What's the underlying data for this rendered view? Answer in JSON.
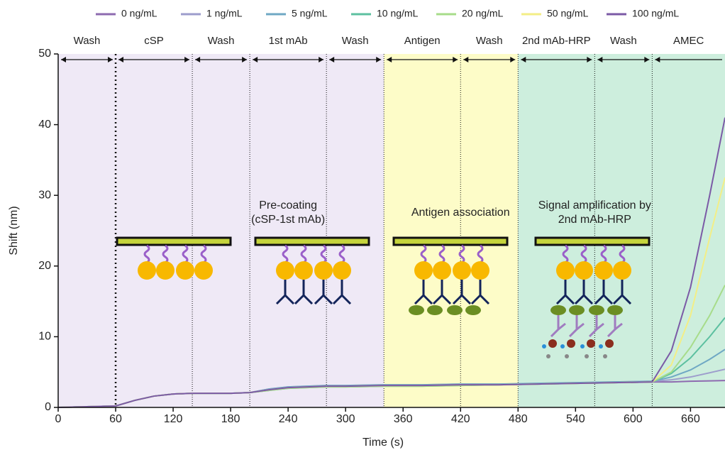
{
  "chart_data": {
    "type": "line",
    "x_label": "Time (s)",
    "y_label": "Shift (nm)",
    "x": [
      0,
      30,
      60,
      80,
      100,
      120,
      140,
      160,
      180,
      200,
      220,
      240,
      260,
      280,
      300,
      340,
      380,
      420,
      460,
      500,
      540,
      580,
      620,
      640,
      660,
      680,
      696
    ],
    "series": [
      {
        "name": "0 ng/mL",
        "color": "#8e6bb0",
        "values": [
          0,
          0.1,
          0.2,
          1.0,
          1.6,
          1.9,
          2.0,
          2.0,
          2.0,
          2.1,
          2.5,
          2.8,
          2.9,
          3.0,
          3.0,
          3.1,
          3.1,
          3.2,
          3.2,
          3.3,
          3.4,
          3.5,
          3.6,
          3.6,
          3.7,
          3.75,
          3.8
        ]
      },
      {
        "name": "1 ng/mL",
        "color": "#9d9dcc",
        "values": [
          0,
          0.1,
          0.2,
          1.0,
          1.6,
          1.9,
          2.0,
          2.0,
          2.0,
          2.1,
          2.6,
          2.9,
          3.0,
          3.1,
          3.1,
          3.2,
          3.2,
          3.3,
          3.3,
          3.4,
          3.5,
          3.6,
          3.7,
          3.9,
          4.3,
          4.9,
          5.4
        ]
      },
      {
        "name": "5 ng/mL",
        "color": "#6fa8c4",
        "values": [
          0,
          0.1,
          0.2,
          1.0,
          1.6,
          1.9,
          2.0,
          2.0,
          2.0,
          2.1,
          2.6,
          2.9,
          3.0,
          3.1,
          3.1,
          3.2,
          3.2,
          3.3,
          3.3,
          3.4,
          3.5,
          3.6,
          3.7,
          4.3,
          5.3,
          6.8,
          8.2
        ]
      },
      {
        "name": "10 ng/mL",
        "color": "#5cc0a0",
        "values": [
          0,
          0.1,
          0.2,
          1.0,
          1.6,
          1.9,
          2.0,
          2.0,
          2.0,
          2.1,
          2.4,
          2.7,
          2.8,
          2.9,
          2.9,
          3.0,
          3.0,
          3.1,
          3.2,
          3.3,
          3.4,
          3.5,
          3.6,
          4.8,
          7.0,
          10.0,
          12.7
        ]
      },
      {
        "name": "20 ng/mL",
        "color": "#a7dc8a",
        "values": [
          0,
          0.1,
          0.2,
          1.0,
          1.6,
          1.9,
          2.0,
          2.0,
          2.0,
          2.1,
          2.4,
          2.7,
          2.8,
          2.9,
          2.9,
          3.0,
          3.0,
          3.1,
          3.2,
          3.3,
          3.4,
          3.5,
          3.6,
          5.0,
          8.5,
          13.0,
          17.3
        ]
      },
      {
        "name": "50 ng/mL",
        "color": "#f3ee86",
        "values": [
          0,
          0.1,
          0.2,
          1.0,
          1.6,
          1.9,
          2.0,
          2.0,
          2.0,
          2.1,
          2.5,
          2.8,
          2.9,
          3.0,
          3.0,
          3.1,
          3.1,
          3.2,
          3.2,
          3.3,
          3.4,
          3.5,
          3.6,
          6.0,
          13.0,
          24.0,
          32.5
        ]
      },
      {
        "name": "100 ng/mL",
        "color": "#7b5aa6",
        "values": [
          0,
          0.1,
          0.2,
          1.0,
          1.6,
          1.9,
          2.0,
          2.0,
          2.0,
          2.1,
          2.5,
          2.8,
          2.9,
          3.0,
          3.0,
          3.1,
          3.1,
          3.2,
          3.2,
          3.3,
          3.4,
          3.5,
          3.6,
          8.0,
          17.0,
          30.0,
          41.0
        ]
      }
    ],
    "xlim": [
      0,
      696
    ],
    "xticks": [
      0,
      60,
      120,
      180,
      240,
      300,
      360,
      420,
      480,
      540,
      600,
      660
    ],
    "ylim": [
      0,
      50
    ],
    "yticks": [
      0,
      10,
      20,
      30,
      40,
      50
    ],
    "regions": [
      {
        "start": 0,
        "end": 340,
        "color": "#efe9f6"
      },
      {
        "start": 340,
        "end": 480,
        "color": "#fdfcc8"
      },
      {
        "start": 480,
        "end": 696,
        "color": "#cdeedd"
      }
    ],
    "phases": [
      {
        "label": "Wash",
        "start": 0,
        "end": 60
      },
      {
        "label": "cSP",
        "start": 60,
        "end": 140
      },
      {
        "label": "Wash",
        "start": 140,
        "end": 200
      },
      {
        "label": "1st mAb",
        "start": 200,
        "end": 280
      },
      {
        "label": "Wash",
        "start": 280,
        "end": 340
      },
      {
        "label": "Antigen",
        "start": 340,
        "end": 420
      },
      {
        "label": "Wash",
        "start": 420,
        "end": 480
      },
      {
        "label": "2nd mAb-HRP",
        "start": 480,
        "end": 560
      },
      {
        "label": "Wash",
        "start": 560,
        "end": 620
      },
      {
        "label": "AMEC",
        "start": 620,
        "end": 696
      }
    ],
    "annotations": [
      {
        "lines": [
          "Pre-coating",
          "(cSP-1st mAb)"
        ],
        "x": 240
      },
      {
        "lines": [
          "Antigen association"
        ],
        "x": 420
      },
      {
        "lines": [
          "Signal amplification by",
          "2nd mAb-HRP"
        ],
        "x": 560
      }
    ]
  }
}
